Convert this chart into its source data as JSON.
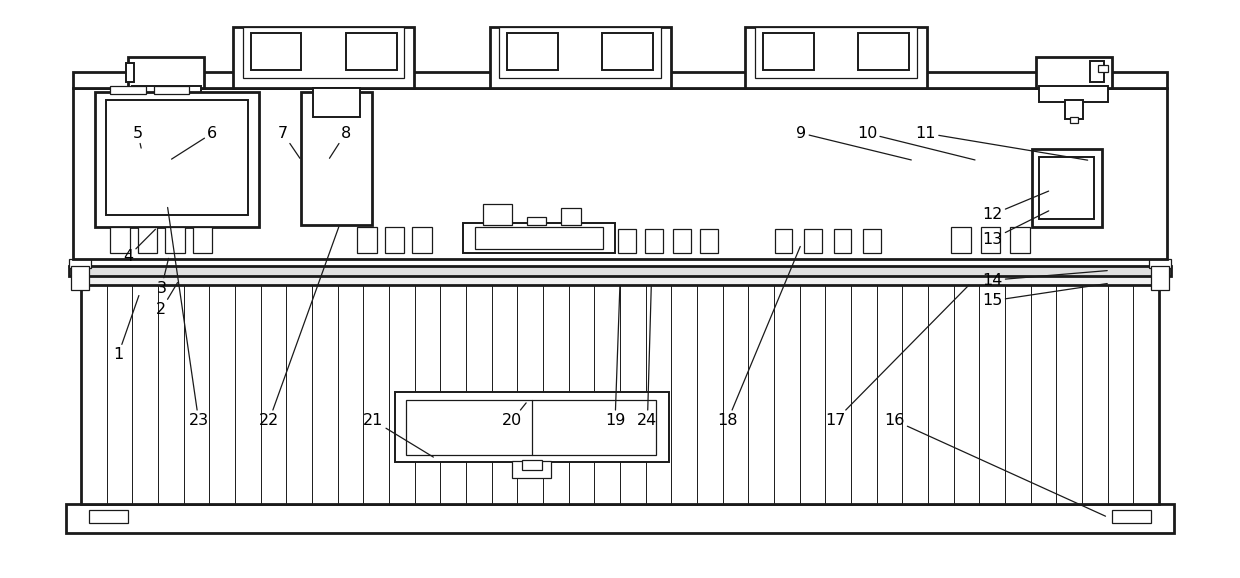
{
  "bg_color": "#ffffff",
  "line_color": "#1a1a1a",
  "lw_thick": 2.0,
  "lw_med": 1.4,
  "lw_thin": 0.9,
  "label_fontsize": 11.5,
  "labels": [
    "1",
    "2",
    "3",
    "4",
    "5",
    "6",
    "7",
    "8",
    "9",
    "10",
    "11",
    "12",
    "13",
    "14",
    "15",
    "16",
    "17",
    "18",
    "19",
    "20",
    "21",
    "22",
    "23",
    "24"
  ],
  "txt_x": [
    108,
    152,
    152,
    118,
    128,
    204,
    276,
    340,
    805,
    872,
    932,
    1000,
    1000,
    1000,
    1000,
    900,
    840,
    730,
    615,
    510,
    368,
    262,
    190,
    648
  ],
  "txt_y": [
    222,
    268,
    290,
    322,
    448,
    448,
    448,
    448,
    448,
    448,
    448,
    365,
    340,
    298,
    277,
    155,
    155,
    155,
    155,
    155,
    155,
    155,
    155,
    155
  ],
  "tip_x": [
    130,
    170,
    160,
    148,
    132,
    160,
    295,
    322,
    920,
    985,
    1100,
    1060,
    1060,
    1120,
    1120,
    1118,
    978,
    805,
    620,
    526,
    432,
    334,
    158,
    652
  ],
  "tip_y": [
    285,
    298,
    323,
    352,
    430,
    420,
    420,
    420,
    420,
    420,
    420,
    390,
    370,
    308,
    295,
    56,
    295,
    335,
    295,
    175,
    116,
    355,
    375,
    295
  ]
}
